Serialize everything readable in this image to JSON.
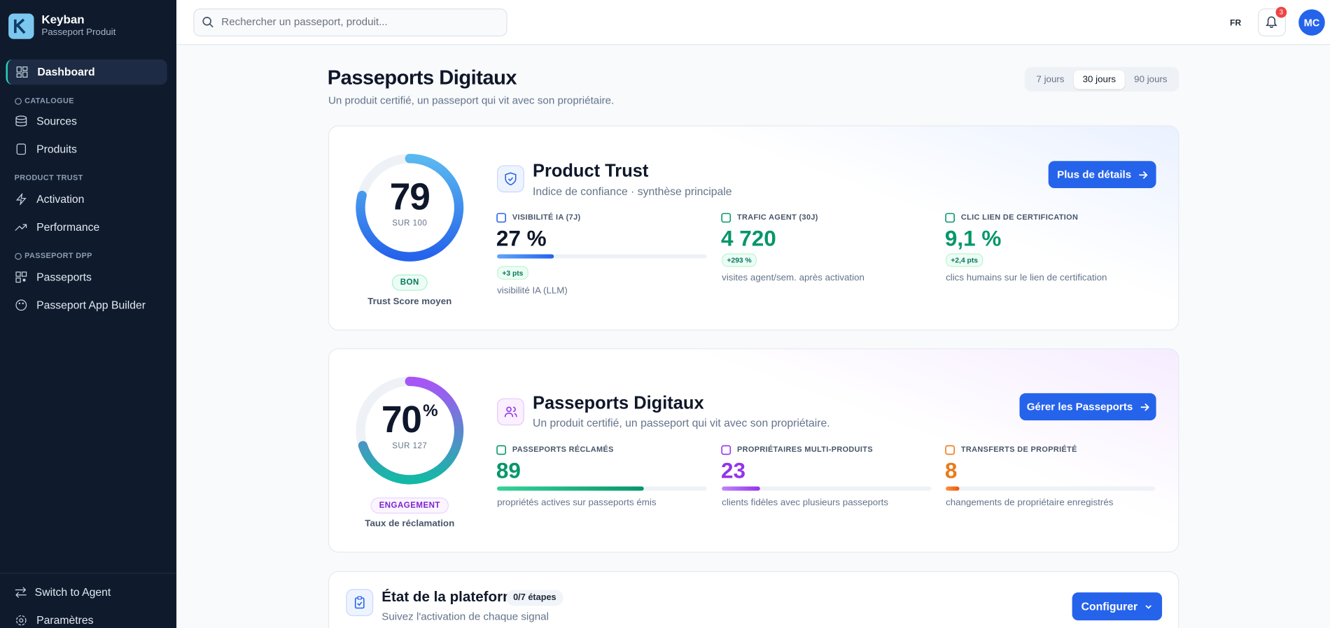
{
  "sidebar": {
    "brand": "Keyban",
    "tagline": "Passeport Produit",
    "nav": {
      "dashboard": "Dashboard",
      "catalogue": "CATALOGUE",
      "sources": "Sources",
      "produits": "Produits",
      "product_trust": "PRODUCT TRUST",
      "activation": "Activation",
      "performance": "Performance",
      "passeport_dpp": "PASSEPORT DPP",
      "passeports": "Passeports",
      "app_builder": "Passeport App Builder"
    },
    "footer": {
      "switch": "Switch to Agent",
      "settings": "Paramètres"
    }
  },
  "header": {
    "search_placeholder": "Rechercher un passeport, produit...",
    "language": "FR",
    "notifications": 3,
    "avatar": "MC"
  },
  "page": {
    "title": "Passeports Digitaux",
    "subtitle": "Un produit certifié, un passeport qui vit avec son propriétaire.",
    "periods": [
      "7 jours",
      "30 jours",
      "90 jours"
    ],
    "active_period": 1
  },
  "cards": [
    {
      "gauge": {
        "value": 79,
        "prefix": "SUR",
        "max": 100,
        "badge": "BON",
        "caption": "Trust Score moyen",
        "colors": [
          "#5ab8f0",
          "#2563eb"
        ]
      },
      "title": "Product Trust",
      "subtitle": "Indice de confiance · synthèse principale",
      "button": "Plus de détails",
      "metrics": [
        {
          "label": "VISIBILITÉ IA (7J)",
          "value": 27,
          "value_label": "27 %",
          "bar": true,
          "color": "#0f172a",
          "bar_colors": [
            "#60a5fa",
            "#2563eb"
          ],
          "delta": "+3 pts",
          "caption": "visibilité IA (LLM)"
        },
        {
          "label": "TRAFIC AGENT (30J)",
          "value": 4720,
          "value_label": "4 720",
          "bar": false,
          "color": "#059669",
          "delta": "+293 %",
          "caption": "visites agent/sem. après activation"
        },
        {
          "label": "CLIC LIEN DE CERTIFICATION",
          "value": 9.1,
          "value_label": "9,1 %",
          "bar": false,
          "color": "#059669",
          "delta": "+2,4 pts",
          "caption": "clics humains sur le lien de certification"
        }
      ]
    },
    {
      "gauge": {
        "value": 70,
        "unit": "%",
        "prefix": "SUR",
        "total": 127,
        "badge": "ENGAGEMENT",
        "caption": "Taux de réclamation",
        "colors": [
          "#a855f7",
          "#14b8a6"
        ]
      },
      "title": "Passeports Digitaux",
      "subtitle": "Un produit certifié, un passeport qui vit avec son propriétaire.",
      "button": "Gérer les Passeports",
      "metrics": [
        {
          "label": "PASSEPORTS RÉCLAMÉS",
          "value": 89,
          "bar": true,
          "color": "#059669",
          "bar_colors": [
            "#34d399",
            "#059669"
          ],
          "caption": "propriétés actives sur passeports émis"
        },
        {
          "label": "PROPRIÉTAIRES MULTI-PRODUITS",
          "value": 23,
          "bar": true,
          "color": "#9333ea",
          "bar_colors": [
            "#c084fc",
            "#9333ea"
          ],
          "caption": "clients fidèles avec plusieurs passeports"
        },
        {
          "label": "TRANSFERTS DE PROPRIÉTÉ",
          "value": 8,
          "bar": true,
          "color": "#ea7a1a",
          "bar_colors": [
            "#fb923c",
            "#ea580c"
          ],
          "caption": "changements de propriétaire enregistrés"
        }
      ]
    }
  ],
  "platform": {
    "title": "État de la plateforme",
    "badge": "0/7 étapes",
    "subtitle": "Suivez l'activation de chaque signal",
    "button": "Configurer"
  }
}
